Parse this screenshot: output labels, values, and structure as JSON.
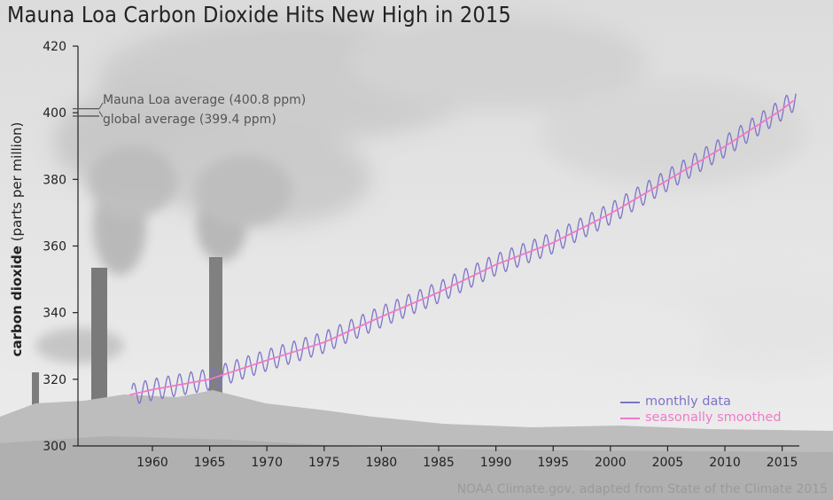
{
  "title": "Mauna Loa Carbon Dioxide Hits New High in 2015",
  "credit": "NOAA Climate.gov, adapted from State of the Climate 2015",
  "annotations": {
    "mauna_loa": "Mauna Loa average (400.8 ppm)",
    "global": "global average (399.4 ppm)"
  },
  "colors": {
    "monthly": "#7b74c9",
    "smoothed": "#f07ac8",
    "text": "#222222",
    "annotation": "#555555"
  },
  "chart_data": {
    "type": "line",
    "title": "Mauna Loa Carbon Dioxide Hits New High in 2015",
    "ylabel_bold": "carbon dioxide",
    "ylabel_rest": "(parts per million)",
    "xlabel": "",
    "xlim": [
      1953.5,
      2016.5
    ],
    "ylim": [
      300,
      420
    ],
    "xticks": [
      1960,
      1965,
      1970,
      1975,
      1980,
      1985,
      1990,
      1995,
      2000,
      2005,
      2010,
      2015
    ],
    "yticks": [
      300,
      320,
      340,
      360,
      380,
      400,
      420
    ],
    "grid": false,
    "legend_position": "bottom-right",
    "series": [
      {
        "name": "monthly data",
        "color": "#7b74c9",
        "kind": "monthly",
        "amplitude": 3.2
      },
      {
        "name": "seasonally smoothed",
        "color": "#f07ac8",
        "kind": "smoothed",
        "x": [
          1958,
          1960,
          1965,
          1970,
          1975,
          1980,
          1985,
          1990,
          1995,
          2000,
          2005,
          2010,
          2015,
          2016.2
        ],
        "values": [
          315.3,
          316.9,
          320.0,
          325.7,
          331.1,
          338.8,
          346.1,
          354.4,
          361.0,
          369.7,
          379.8,
          389.9,
          401.0,
          404.2
        ]
      }
    ],
    "annotations_data": [
      {
        "label": "Mauna Loa average",
        "value": 400.8
      },
      {
        "label": "global average",
        "value": 399.4
      }
    ]
  }
}
